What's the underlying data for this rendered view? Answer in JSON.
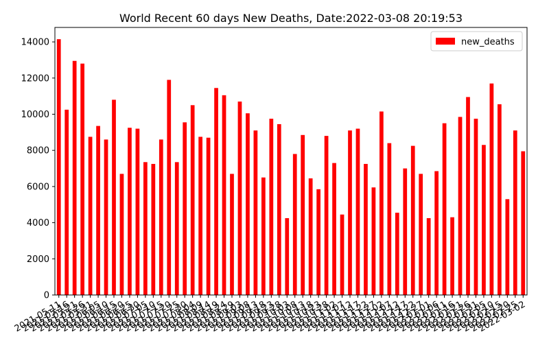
{
  "chart_data": {
    "type": "bar",
    "title": "World Recent 60 days New Deaths, Date:2022-03-08 20:19:53",
    "xlabel": "",
    "ylabel": "",
    "ylim": [
      0,
      14800
    ],
    "y_ticks": [
      0,
      2000,
      4000,
      6000,
      8000,
      10000,
      12000,
      14000
    ],
    "legend_position": "top-right",
    "colors": {
      "bar": "#ff0000",
      "axis": "#000000"
    },
    "categories": [
      "2021-05-11",
      "2021-05-16",
      "2021-05-21",
      "2021-05-26",
      "2021-05-31",
      "2021-06-05",
      "2021-06-10",
      "2021-06-15",
      "2021-06-20",
      "2021-06-25",
      "2021-06-30",
      "2021-07-05",
      "2021-07-10",
      "2021-07-15",
      "2021-07-20",
      "2021-07-25",
      "2021-07-30",
      "2021-08-04",
      "2021-08-09",
      "2021-08-14",
      "2021-08-19",
      "2021-08-24",
      "2021-08-29",
      "2021-09-03",
      "2021-09-08",
      "2021-09-13",
      "2021-09-18",
      "2021-09-23",
      "2021-09-28",
      "2021-10-03",
      "2021-10-08",
      "2021-10-13",
      "2021-10-18",
      "2021-10-23",
      "2021-10-28",
      "2021-11-02",
      "2021-11-07",
      "2021-11-12",
      "2021-11-17",
      "2021-11-22",
      "2021-11-27",
      "2021-12-02",
      "2021-12-07",
      "2021-12-12",
      "2021-12-17",
      "2021-12-22",
      "2021-12-27",
      "2022-01-01",
      "2022-01-06",
      "2022-01-11",
      "2022-01-16",
      "2022-01-21",
      "2022-01-26",
      "2022-01-31",
      "2022-02-05",
      "2022-02-10",
      "2022-02-15",
      "2022-02-20",
      "2022-02-25",
      "2022-03-02"
    ],
    "series": [
      {
        "name": "new_deaths",
        "values": [
          14150,
          10250,
          12950,
          12800,
          8750,
          9350,
          8600,
          10800,
          6700,
          9250,
          9200,
          7350,
          7250,
          8600,
          11900,
          7350,
          9550,
          10500,
          8750,
          8700,
          11450,
          11050,
          6700,
          10700,
          10050,
          9100,
          6500,
          9750,
          9450,
          4250,
          7800,
          8850,
          6450,
          5850,
          8800,
          7300,
          4450,
          9100,
          9200,
          7250,
          5950,
          10150,
          8400,
          4550,
          7000,
          8250,
          6700,
          4250,
          6850,
          9500,
          4300,
          9850,
          10950,
          9750,
          8300,
          11700,
          10550,
          5300,
          9100,
          7950
        ]
      }
    ]
  }
}
